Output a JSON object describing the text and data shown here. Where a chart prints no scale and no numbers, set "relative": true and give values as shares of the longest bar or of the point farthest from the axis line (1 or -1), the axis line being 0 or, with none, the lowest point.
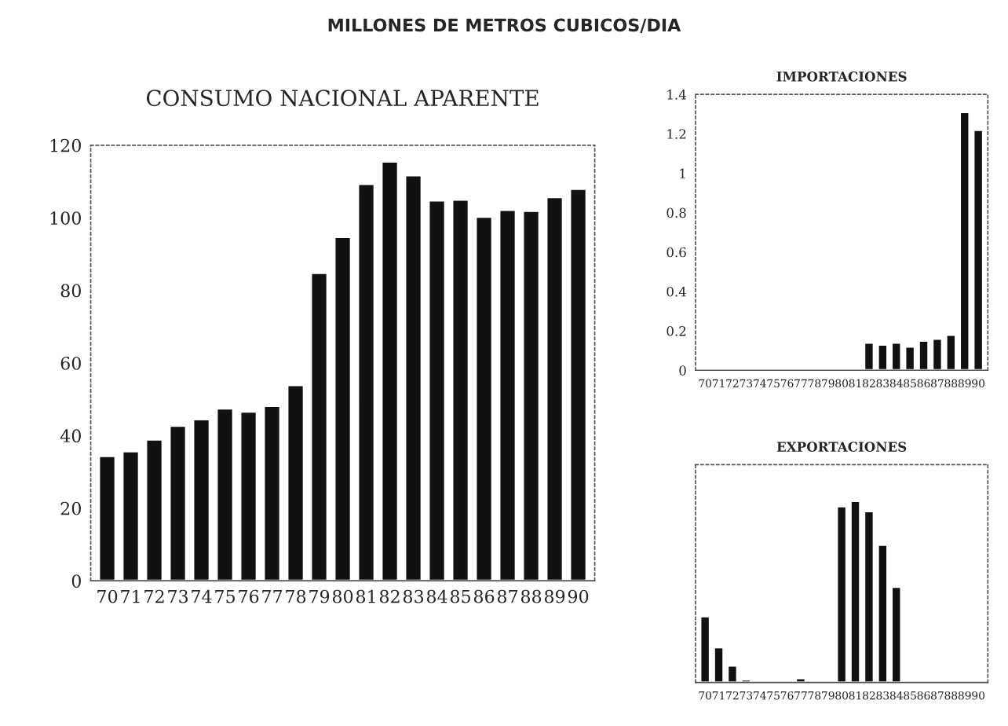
{
  "chart_data": [
    {
      "type": "bar",
      "title": "CONSUMO NACIONAL APARENTE",
      "annotations": [
        "MILLONES DE METROS CUBICOS/DIA"
      ],
      "categories": [
        "70",
        "71",
        "72",
        "73",
        "74",
        "75",
        "76",
        "77",
        "78",
        "79",
        "80",
        "81",
        "82",
        "83",
        "84",
        "85",
        "86",
        "87",
        "88",
        "89",
        "90"
      ],
      "values": [
        34.4,
        35.7,
        38.9,
        42.7,
        44.5,
        47.5,
        46.6,
        48.2,
        53.9,
        84.8,
        94.7,
        109.3,
        115.5,
        111.7,
        104.8,
        105,
        100.3,
        102.2,
        101.9,
        105.7,
        108
      ],
      "color": "#111111",
      "ylim": [
        0,
        120
      ],
      "yticks": [
        0,
        20,
        40,
        60,
        80,
        100,
        120
      ]
    },
    {
      "type": "bar",
      "title": "IMPORTACIONES",
      "categories": [
        "70",
        "71",
        "72",
        "73",
        "74",
        "75",
        "76",
        "77",
        "78",
        "79",
        "80",
        "81",
        "82",
        "83",
        "84",
        "85",
        "86",
        "87",
        "88",
        "89",
        "90"
      ],
      "values": [
        null,
        null,
        null,
        null,
        null,
        null,
        null,
        null,
        null,
        null,
        null,
        null,
        0.14,
        0.13,
        0.14,
        0.12,
        0.15,
        0.16,
        0.18,
        1.31,
        1.22
      ],
      "color": "#111111",
      "ylim": [
        0,
        1.4
      ],
      "yticks": [
        0,
        0.2,
        0.4,
        0.6,
        0.8,
        1,
        1.2,
        1.4
      ]
    },
    {
      "type": "bar",
      "title": "EXPORTACIONES",
      "relative": true,
      "categories": [
        "70",
        "71",
        "72",
        "73",
        "74",
        "75",
        "76",
        "77",
        "78",
        "79",
        "80",
        "81",
        "82",
        "83",
        "84",
        "85",
        "86",
        "87",
        "88",
        "89",
        "90"
      ],
      "values": [
        0.364,
        0.194,
        0.093,
        0.016,
        0.008,
        null,
        null,
        0.024,
        null,
        null,
        0.971,
        1,
        0.944,
        0.758,
        0.527,
        null,
        null,
        null,
        null,
        null,
        null
      ],
      "color": "#111111"
    }
  ]
}
